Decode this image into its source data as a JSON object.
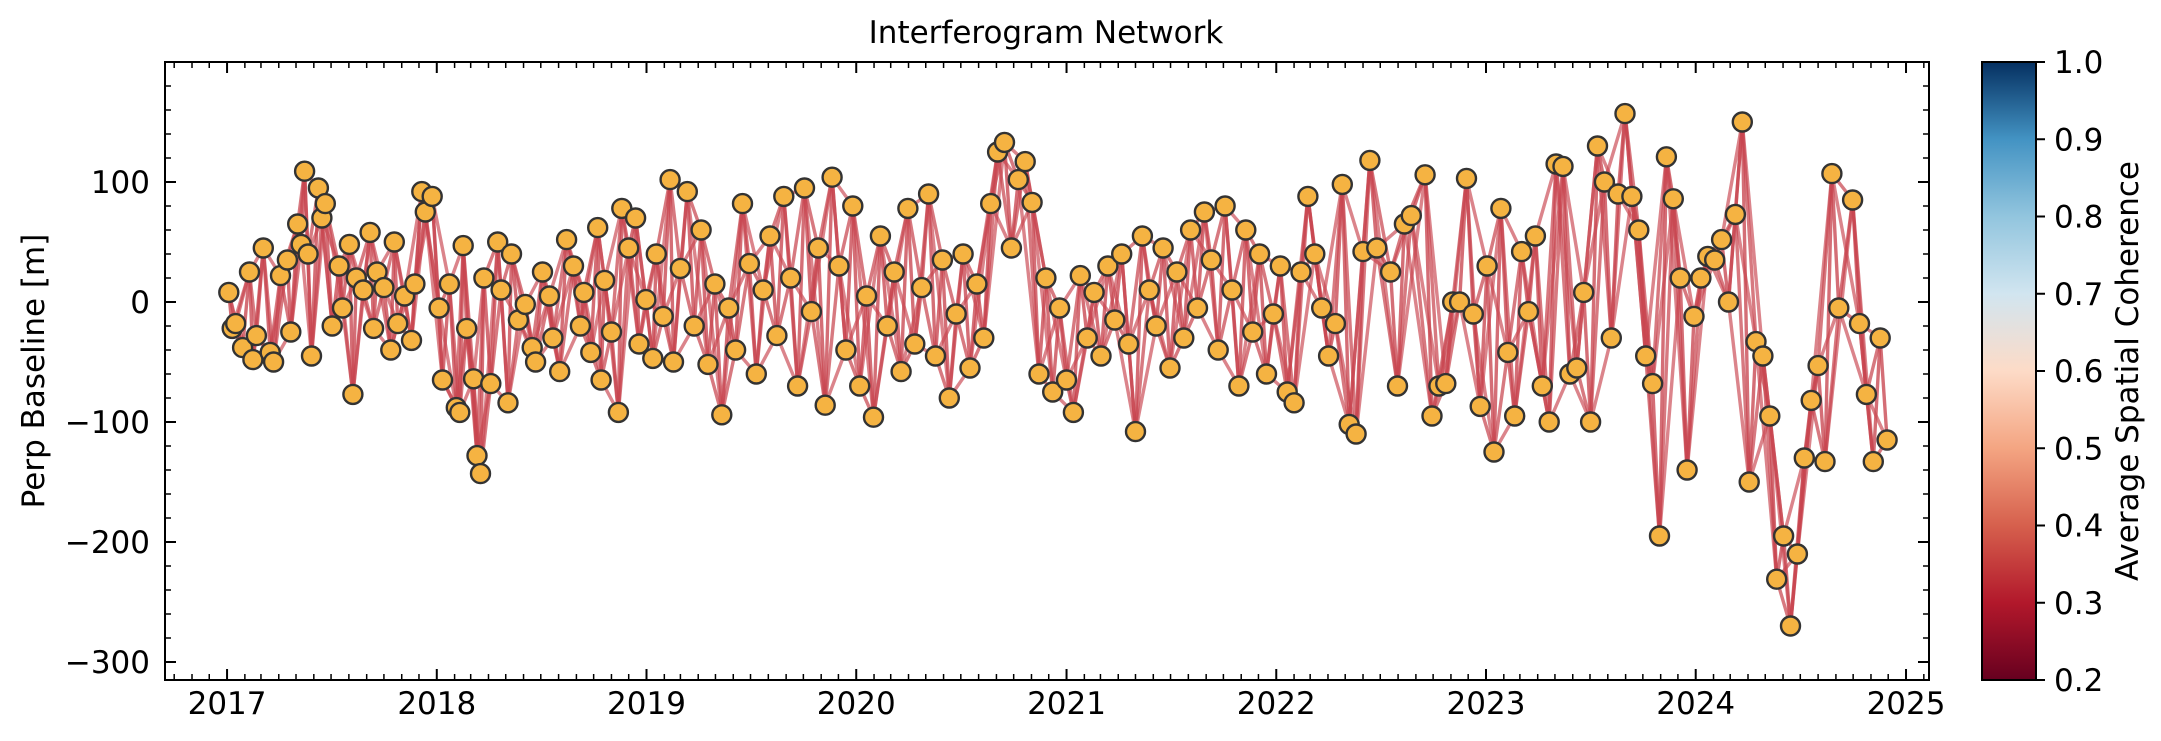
{
  "chart_data": {
    "type": "scatter",
    "title": "Interferogram Network",
    "xlabel": "",
    "ylabel": "Perp Baseline [m]",
    "xlim": [
      "2016-09-15",
      "2025-02-10"
    ],
    "ylim": [
      -315,
      200
    ],
    "x_ticks": [
      "2017",
      "2018",
      "2019",
      "2020",
      "2021",
      "2022",
      "2023",
      "2024",
      "2025"
    ],
    "y_ticks": [
      -300,
      -200,
      -100,
      0,
      100
    ],
    "y_tick_labels": [
      "−300",
      "−200",
      "−100",
      "0",
      "100"
    ],
    "grid": false,
    "point_style": {
      "fill": "#f5b342",
      "edge": "#333333"
    },
    "colorbar": {
      "label": "Average Spatial Coherence",
      "range": [
        0.2,
        1.0
      ],
      "ticks": [
        "0.2",
        "0.3",
        "0.4",
        "0.5",
        "0.6",
        "0.7",
        "0.8",
        "0.9",
        "1.0"
      ],
      "colormap": "RdBu",
      "low_color": "#67001f",
      "high_color": "#053061"
    },
    "acquisitions": [
      {
        "date": "2017-01-04",
        "bperp": 8
      },
      {
        "date": "2017-01-10",
        "bperp": -22
      },
      {
        "date": "2017-01-16",
        "bperp": -18
      },
      {
        "date": "2017-01-28",
        "bperp": -38
      },
      {
        "date": "2017-02-09",
        "bperp": 25
      },
      {
        "date": "2017-02-15",
        "bperp": -48
      },
      {
        "date": "2017-02-21",
        "bperp": -28
      },
      {
        "date": "2017-03-05",
        "bperp": 45
      },
      {
        "date": "2017-03-17",
        "bperp": -42
      },
      {
        "date": "2017-03-23",
        "bperp": -50
      },
      {
        "date": "2017-04-04",
        "bperp": 22
      },
      {
        "date": "2017-04-16",
        "bperp": 35
      },
      {
        "date": "2017-04-22",
        "bperp": -25
      },
      {
        "date": "2017-05-04",
        "bperp": 65
      },
      {
        "date": "2017-05-10",
        "bperp": 48
      },
      {
        "date": "2017-05-16",
        "bperp": 109
      },
      {
        "date": "2017-05-22",
        "bperp": 40
      },
      {
        "date": "2017-05-28",
        "bperp": -45
      },
      {
        "date": "2017-06-09",
        "bperp": 95
      },
      {
        "date": "2017-06-15",
        "bperp": 70
      },
      {
        "date": "2017-06-21",
        "bperp": 82
      },
      {
        "date": "2017-07-03",
        "bperp": -20
      },
      {
        "date": "2017-07-15",
        "bperp": 30
      },
      {
        "date": "2017-07-21",
        "bperp": -5
      },
      {
        "date": "2017-08-02",
        "bperp": 48
      },
      {
        "date": "2017-08-08",
        "bperp": -77
      },
      {
        "date": "2017-08-14",
        "bperp": 20
      },
      {
        "date": "2017-08-26",
        "bperp": 10
      },
      {
        "date": "2017-09-07",
        "bperp": 58
      },
      {
        "date": "2017-09-13",
        "bperp": -22
      },
      {
        "date": "2017-09-19",
        "bperp": 25
      },
      {
        "date": "2017-10-01",
        "bperp": 12
      },
      {
        "date": "2017-10-13",
        "bperp": -40
      },
      {
        "date": "2017-10-19",
        "bperp": 50
      },
      {
        "date": "2017-10-25",
        "bperp": -18
      },
      {
        "date": "2017-11-06",
        "bperp": 5
      },
      {
        "date": "2017-11-18",
        "bperp": -32
      },
      {
        "date": "2017-11-24",
        "bperp": 15
      },
      {
        "date": "2017-12-06",
        "bperp": 92
      },
      {
        "date": "2017-12-12",
        "bperp": 75
      },
      {
        "date": "2017-12-24",
        "bperp": 88
      },
      {
        "date": "2018-01-05",
        "bperp": -5
      },
      {
        "date": "2018-01-11",
        "bperp": -65
      },
      {
        "date": "2018-01-23",
        "bperp": 15
      },
      {
        "date": "2018-02-04",
        "bperp": -88
      },
      {
        "date": "2018-02-10",
        "bperp": -92
      },
      {
        "date": "2018-02-16",
        "bperp": 47
      },
      {
        "date": "2018-02-22",
        "bperp": -22
      },
      {
        "date": "2018-03-06",
        "bperp": -64
      },
      {
        "date": "2018-03-12",
        "bperp": -128
      },
      {
        "date": "2018-03-18",
        "bperp": -143
      },
      {
        "date": "2018-03-24",
        "bperp": 20
      },
      {
        "date": "2018-04-05",
        "bperp": -68
      },
      {
        "date": "2018-04-17",
        "bperp": 50
      },
      {
        "date": "2018-04-23",
        "bperp": 10
      },
      {
        "date": "2018-05-05",
        "bperp": -84
      },
      {
        "date": "2018-05-11",
        "bperp": 40
      },
      {
        "date": "2018-05-23",
        "bperp": -15
      },
      {
        "date": "2018-06-04",
        "bperp": -2
      },
      {
        "date": "2018-06-16",
        "bperp": -38
      },
      {
        "date": "2018-06-22",
        "bperp": -50
      },
      {
        "date": "2018-07-04",
        "bperp": 25
      },
      {
        "date": "2018-07-16",
        "bperp": 5
      },
      {
        "date": "2018-07-22",
        "bperp": -30
      },
      {
        "date": "2018-08-03",
        "bperp": -58
      },
      {
        "date": "2018-08-15",
        "bperp": 52
      },
      {
        "date": "2018-08-27",
        "bperp": 30
      },
      {
        "date": "2018-09-08",
        "bperp": -20
      },
      {
        "date": "2018-09-14",
        "bperp": 8
      },
      {
        "date": "2018-09-26",
        "bperp": -42
      },
      {
        "date": "2018-10-08",
        "bperp": 62
      },
      {
        "date": "2018-10-14",
        "bperp": -65
      },
      {
        "date": "2018-10-20",
        "bperp": 18
      },
      {
        "date": "2018-11-01",
        "bperp": -25
      },
      {
        "date": "2018-11-13",
        "bperp": -92
      },
      {
        "date": "2018-11-19",
        "bperp": 78
      },
      {
        "date": "2018-12-01",
        "bperp": 45
      },
      {
        "date": "2018-12-13",
        "bperp": 70
      },
      {
        "date": "2018-12-19",
        "bperp": -35
      },
      {
        "date": "2018-12-31",
        "bperp": 2
      },
      {
        "date": "2019-01-12",
        "bperp": -47
      },
      {
        "date": "2019-01-18",
        "bperp": 40
      },
      {
        "date": "2019-01-30",
        "bperp": -12
      },
      {
        "date": "2019-02-11",
        "bperp": 102
      },
      {
        "date": "2019-02-17",
        "bperp": -50
      },
      {
        "date": "2019-03-01",
        "bperp": 28
      },
      {
        "date": "2019-03-13",
        "bperp": 92
      },
      {
        "date": "2019-03-25",
        "bperp": -20
      },
      {
        "date": "2019-04-06",
        "bperp": 60
      },
      {
        "date": "2019-04-18",
        "bperp": -52
      },
      {
        "date": "2019-04-30",
        "bperp": 15
      },
      {
        "date": "2019-05-12",
        "bperp": -94
      },
      {
        "date": "2019-05-24",
        "bperp": -5
      },
      {
        "date": "2019-06-05",
        "bperp": -40
      },
      {
        "date": "2019-06-17",
        "bperp": 82
      },
      {
        "date": "2019-06-29",
        "bperp": 32
      },
      {
        "date": "2019-07-11",
        "bperp": -60
      },
      {
        "date": "2019-07-23",
        "bperp": 10
      },
      {
        "date": "2019-08-04",
        "bperp": 55
      },
      {
        "date": "2019-08-16",
        "bperp": -28
      },
      {
        "date": "2019-08-28",
        "bperp": 88
      },
      {
        "date": "2019-09-09",
        "bperp": 20
      },
      {
        "date": "2019-09-21",
        "bperp": -70
      },
      {
        "date": "2019-10-03",
        "bperp": 95
      },
      {
        "date": "2019-10-15",
        "bperp": -8
      },
      {
        "date": "2019-10-27",
        "bperp": 45
      },
      {
        "date": "2019-11-08",
        "bperp": -86
      },
      {
        "date": "2019-11-20",
        "bperp": 104
      },
      {
        "date": "2019-12-02",
        "bperp": 30
      },
      {
        "date": "2019-12-14",
        "bperp": -40
      },
      {
        "date": "2019-12-26",
        "bperp": 80
      },
      {
        "date": "2020-01-07",
        "bperp": -70
      },
      {
        "date": "2020-01-19",
        "bperp": 5
      },
      {
        "date": "2020-01-31",
        "bperp": -96
      },
      {
        "date": "2020-02-12",
        "bperp": 55
      },
      {
        "date": "2020-02-24",
        "bperp": -20
      },
      {
        "date": "2020-03-07",
        "bperp": 25
      },
      {
        "date": "2020-03-19",
        "bperp": -58
      },
      {
        "date": "2020-03-31",
        "bperp": 78
      },
      {
        "date": "2020-04-12",
        "bperp": -35
      },
      {
        "date": "2020-04-24",
        "bperp": 12
      },
      {
        "date": "2020-05-06",
        "bperp": 90
      },
      {
        "date": "2020-05-18",
        "bperp": -45
      },
      {
        "date": "2020-05-30",
        "bperp": 35
      },
      {
        "date": "2020-06-11",
        "bperp": -80
      },
      {
        "date": "2020-06-23",
        "bperp": -10
      },
      {
        "date": "2020-07-05",
        "bperp": 40
      },
      {
        "date": "2020-07-17",
        "bperp": -55
      },
      {
        "date": "2020-07-29",
        "bperp": 15
      },
      {
        "date": "2020-08-10",
        "bperp": -30
      },
      {
        "date": "2020-08-22",
        "bperp": 82
      },
      {
        "date": "2020-09-03",
        "bperp": 125
      },
      {
        "date": "2020-09-15",
        "bperp": 133
      },
      {
        "date": "2020-09-27",
        "bperp": 45
      },
      {
        "date": "2020-10-09",
        "bperp": 102
      },
      {
        "date": "2020-10-21",
        "bperp": 117
      },
      {
        "date": "2020-11-02",
        "bperp": 83
      },
      {
        "date": "2020-11-14",
        "bperp": -60
      },
      {
        "date": "2020-11-26",
        "bperp": 20
      },
      {
        "date": "2020-12-08",
        "bperp": -75
      },
      {
        "date": "2020-12-20",
        "bperp": -5
      },
      {
        "date": "2021-01-01",
        "bperp": -65
      },
      {
        "date": "2021-01-13",
        "bperp": -92
      },
      {
        "date": "2021-01-25",
        "bperp": 22
      },
      {
        "date": "2021-02-06",
        "bperp": -30
      },
      {
        "date": "2021-02-18",
        "bperp": 8
      },
      {
        "date": "2021-03-02",
        "bperp": -45
      },
      {
        "date": "2021-03-14",
        "bperp": 30
      },
      {
        "date": "2021-03-26",
        "bperp": -15
      },
      {
        "date": "2021-04-07",
        "bperp": 40
      },
      {
        "date": "2021-04-19",
        "bperp": -35
      },
      {
        "date": "2021-05-01",
        "bperp": -108
      },
      {
        "date": "2021-05-13",
        "bperp": 55
      },
      {
        "date": "2021-05-25",
        "bperp": 10
      },
      {
        "date": "2021-06-06",
        "bperp": -20
      },
      {
        "date": "2021-06-18",
        "bperp": 45
      },
      {
        "date": "2021-06-30",
        "bperp": -55
      },
      {
        "date": "2021-07-12",
        "bperp": 25
      },
      {
        "date": "2021-07-24",
        "bperp": -30
      },
      {
        "date": "2021-08-05",
        "bperp": 60
      },
      {
        "date": "2021-08-17",
        "bperp": -5
      },
      {
        "date": "2021-08-29",
        "bperp": 75
      },
      {
        "date": "2021-09-10",
        "bperp": 35
      },
      {
        "date": "2021-09-22",
        "bperp": -40
      },
      {
        "date": "2021-10-04",
        "bperp": 80
      },
      {
        "date": "2021-10-16",
        "bperp": 10
      },
      {
        "date": "2021-10-28",
        "bperp": -70
      },
      {
        "date": "2021-11-09",
        "bperp": 60
      },
      {
        "date": "2021-11-21",
        "bperp": -25
      },
      {
        "date": "2021-12-03",
        "bperp": 40
      },
      {
        "date": "2021-12-15",
        "bperp": -60
      },
      {
        "date": "2021-12-27",
        "bperp": -10
      },
      {
        "date": "2022-01-08",
        "bperp": 30
      },
      {
        "date": "2022-01-20",
        "bperp": -75
      },
      {
        "date": "2022-02-01",
        "bperp": -84
      },
      {
        "date": "2022-02-13",
        "bperp": 25
      },
      {
        "date": "2022-02-25",
        "bperp": 88
      },
      {
        "date": "2022-03-09",
        "bperp": 40
      },
      {
        "date": "2022-03-21",
        "bperp": -5
      },
      {
        "date": "2022-04-02",
        "bperp": -45
      },
      {
        "date": "2022-04-14",
        "bperp": -18
      },
      {
        "date": "2022-04-26",
        "bperp": 98
      },
      {
        "date": "2022-05-08",
        "bperp": -102
      },
      {
        "date": "2022-05-20",
        "bperp": -110
      },
      {
        "date": "2022-06-01",
        "bperp": 42
      },
      {
        "date": "2022-06-13",
        "bperp": 118
      },
      {
        "date": "2022-06-25",
        "bperp": 45
      },
      {
        "date": "2022-07-19",
        "bperp": 25
      },
      {
        "date": "2022-07-31",
        "bperp": -70
      },
      {
        "date": "2022-08-12",
        "bperp": 65
      },
      {
        "date": "2022-08-24",
        "bperp": 72
      },
      {
        "date": "2022-09-17",
        "bperp": 106
      },
      {
        "date": "2022-09-29",
        "bperp": -95
      },
      {
        "date": "2022-10-11",
        "bperp": -70
      },
      {
        "date": "2022-10-23",
        "bperp": -68
      },
      {
        "date": "2022-11-04",
        "bperp": 0
      },
      {
        "date": "2022-11-16",
        "bperp": 0
      },
      {
        "date": "2022-11-28",
        "bperp": 103
      },
      {
        "date": "2022-12-10",
        "bperp": -10
      },
      {
        "date": "2022-12-22",
        "bperp": -87
      },
      {
        "date": "2023-01-03",
        "bperp": 30
      },
      {
        "date": "2023-01-15",
        "bperp": -125
      },
      {
        "date": "2023-01-27",
        "bperp": 78
      },
      {
        "date": "2023-02-08",
        "bperp": -42
      },
      {
        "date": "2023-02-20",
        "bperp": -95
      },
      {
        "date": "2023-03-04",
        "bperp": 42
      },
      {
        "date": "2023-03-16",
        "bperp": -8
      },
      {
        "date": "2023-03-28",
        "bperp": 55
      },
      {
        "date": "2023-04-09",
        "bperp": -70
      },
      {
        "date": "2023-04-21",
        "bperp": -100
      },
      {
        "date": "2023-05-03",
        "bperp": 115
      },
      {
        "date": "2023-05-15",
        "bperp": 113
      },
      {
        "date": "2023-05-27",
        "bperp": -60
      },
      {
        "date": "2023-06-08",
        "bperp": -55
      },
      {
        "date": "2023-06-20",
        "bperp": 8
      },
      {
        "date": "2023-07-02",
        "bperp": -100
      },
      {
        "date": "2023-07-14",
        "bperp": 130
      },
      {
        "date": "2023-07-26",
        "bperp": 100
      },
      {
        "date": "2023-08-07",
        "bperp": -30
      },
      {
        "date": "2023-08-19",
        "bperp": 90
      },
      {
        "date": "2023-08-31",
        "bperp": 157
      },
      {
        "date": "2023-09-12",
        "bperp": 88
      },
      {
        "date": "2023-09-24",
        "bperp": 60
      },
      {
        "date": "2023-10-06",
        "bperp": -45
      },
      {
        "date": "2023-10-18",
        "bperp": -68
      },
      {
        "date": "2023-10-30",
        "bperp": -195
      },
      {
        "date": "2023-11-11",
        "bperp": 121
      },
      {
        "date": "2023-11-23",
        "bperp": 86
      },
      {
        "date": "2023-12-05",
        "bperp": 20
      },
      {
        "date": "2023-12-17",
        "bperp": -140
      },
      {
        "date": "2023-12-29",
        "bperp": -12
      },
      {
        "date": "2024-01-10",
        "bperp": 20
      },
      {
        "date": "2024-01-22",
        "bperp": 38
      },
      {
        "date": "2024-02-03",
        "bperp": 35
      },
      {
        "date": "2024-02-15",
        "bperp": 52
      },
      {
        "date": "2024-02-27",
        "bperp": 0
      },
      {
        "date": "2024-03-10",
        "bperp": 73
      },
      {
        "date": "2024-03-22",
        "bperp": 150
      },
      {
        "date": "2024-04-03",
        "bperp": -150
      },
      {
        "date": "2024-04-15",
        "bperp": -33
      },
      {
        "date": "2024-04-27",
        "bperp": -45
      },
      {
        "date": "2024-05-09",
        "bperp": -95
      },
      {
        "date": "2024-05-21",
        "bperp": -231
      },
      {
        "date": "2024-06-02",
        "bperp": -195
      },
      {
        "date": "2024-06-14",
        "bperp": -270
      },
      {
        "date": "2024-06-26",
        "bperp": -210
      },
      {
        "date": "2024-07-08",
        "bperp": -130
      },
      {
        "date": "2024-07-20",
        "bperp": -82
      },
      {
        "date": "2024-08-01",
        "bperp": -53
      },
      {
        "date": "2024-08-13",
        "bperp": -133
      },
      {
        "date": "2024-08-25",
        "bperp": 107
      },
      {
        "date": "2024-09-06",
        "bperp": -5
      },
      {
        "date": "2024-09-30",
        "bperp": 85
      },
      {
        "date": "2024-10-12",
        "bperp": -18
      },
      {
        "date": "2024-10-24",
        "bperp": -77
      },
      {
        "date": "2024-11-05",
        "bperp": -133
      },
      {
        "date": "2024-11-17",
        "bperp": -30
      },
      {
        "date": "2024-11-29",
        "bperp": -115
      }
    ],
    "neighbors": 3,
    "link_style": {
      "color": "#c8454f",
      "coherence_range": [
        0.42,
        0.62
      ]
    }
  }
}
